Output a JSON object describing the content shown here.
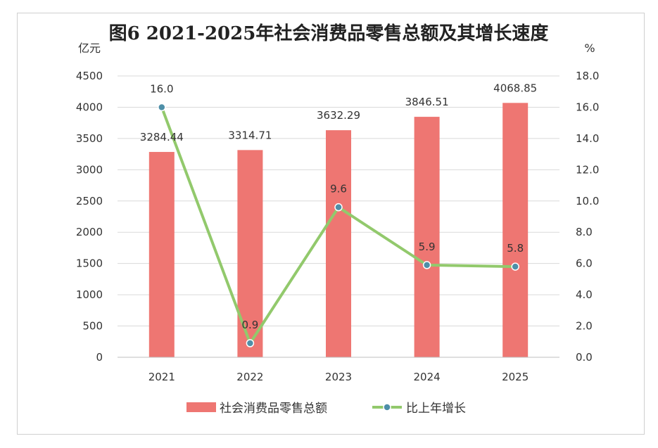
{
  "chart_data": {
    "type": "bar",
    "title": "图6 2021-2025年社会消费品零售总额及其增长速度",
    "y_left_unit": "亿元",
    "y_right_unit": "%",
    "categories": [
      "2021",
      "2022",
      "2023",
      "2024",
      "2025"
    ],
    "y_left_ticks": [
      "0",
      "500",
      "1000",
      "1500",
      "2000",
      "2500",
      "3000",
      "3500",
      "4000",
      "4500"
    ],
    "y_right_ticks": [
      "0.0",
      "2.0",
      "4.0",
      "6.0",
      "8.0",
      "10.0",
      "12.0",
      "14.0",
      "16.0",
      "18.0"
    ],
    "ylim_left": [
      0,
      4500
    ],
    "ylim_right": [
      0,
      18
    ],
    "series": [
      {
        "name": "社会消费品零售总额",
        "type": "bar",
        "axis": "left",
        "color": "#ee7672",
        "values": [
          3284.44,
          3314.71,
          3632.29,
          3846.51,
          4068.85
        ],
        "labels": [
          "3284.44",
          "3314.71",
          "3632.29",
          "3846.51",
          "4068.85"
        ]
      },
      {
        "name": "比上年增长",
        "type": "line",
        "axis": "right",
        "color": "#92c96c",
        "marker_color": "#4e8fa8",
        "values": [
          16.0,
          0.9,
          9.6,
          5.9,
          5.8
        ],
        "labels": [
          "16.0",
          "0.9",
          "9.6",
          "5.9",
          "5.8"
        ]
      }
    ],
    "grid": true,
    "legend_position": "bottom"
  }
}
